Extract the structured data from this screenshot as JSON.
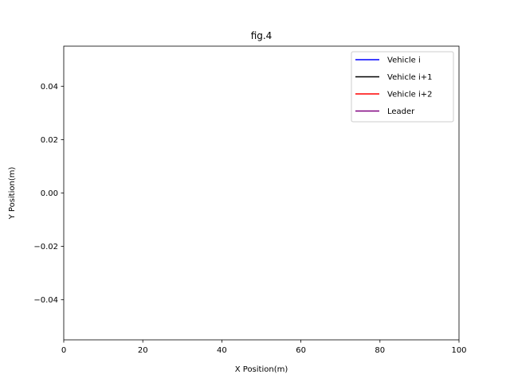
{
  "chart_data": {
    "type": "line",
    "title": "fig.4",
    "xlabel": "X Position(m)",
    "ylabel": "Y Position(m)",
    "xlim": [
      0,
      100
    ],
    "ylim": [
      -0.055,
      0.055
    ],
    "x_ticks": [
      0,
      20,
      40,
      60,
      80,
      100
    ],
    "x_tick_labels": [
      "0",
      "20",
      "40",
      "60",
      "80",
      "100"
    ],
    "y_ticks": [
      -0.04,
      -0.02,
      0.0,
      0.02,
      0.04
    ],
    "y_tick_labels": [
      "−0.04",
      "−0.02",
      "0.00",
      "0.02",
      "0.04"
    ],
    "grid": false,
    "legend_position": "top-right",
    "series": [
      {
        "name": "Vehicle i",
        "color": "#0000ff",
        "x": [],
        "y": []
      },
      {
        "name": "Vehicle i+1",
        "color": "#000000",
        "x": [],
        "y": []
      },
      {
        "name": "Vehicle i+2",
        "color": "#ff0000",
        "x": [],
        "y": []
      },
      {
        "name": "Leader",
        "color": "#800080",
        "x": [],
        "y": []
      }
    ]
  }
}
